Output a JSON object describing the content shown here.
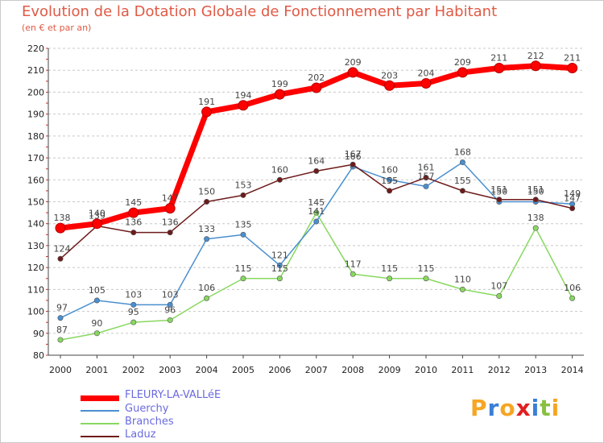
{
  "chart_data": {
    "type": "line",
    "title": "Evolution de la Dotation Globale de Fonctionnement par Habitant",
    "subtitle": "(en € et par an)",
    "x": [
      "2000",
      "2001",
      "2002",
      "2003",
      "2004",
      "2005",
      "2006",
      "2007",
      "2008",
      "2009",
      "2010",
      "2011",
      "2012",
      "2013",
      "2014"
    ],
    "ylim": [
      80,
      220
    ],
    "yticks": [
      80,
      90,
      100,
      110,
      120,
      130,
      140,
      150,
      160,
      170,
      180,
      190,
      200,
      210,
      220
    ],
    "grid": "horizontal dashed",
    "legend_position": "bottom-left",
    "series": [
      {
        "name": "FLEURY-LA-VALLéE",
        "color": "#ff0000",
        "values": [
          138,
          140,
          145,
          147,
          191,
          194,
          199,
          202,
          209,
          203,
          204,
          209,
          211,
          212,
          211
        ],
        "labels": [
          "138",
          "140",
          "145",
          "147",
          "191",
          "194",
          "199",
          "202",
          "209",
          "203",
          "204",
          "209",
          "211",
          "212",
          "211"
        ]
      },
      {
        "name": "Guerchy",
        "color": "#4a8fd0",
        "values": [
          97,
          105,
          103,
          103,
          133,
          135,
          121,
          141,
          166,
          160,
          157,
          168,
          150,
          150,
          149
        ],
        "labels": [
          "97",
          "105",
          "103",
          "103",
          "133",
          "135",
          "121",
          "141",
          "166",
          "160",
          "157",
          "168",
          "150",
          "150",
          "149"
        ]
      },
      {
        "name": "Branches",
        "color": "#88d860",
        "values": [
          87,
          90,
          95,
          96,
          106,
          115,
          115,
          145,
          117,
          115,
          115,
          110,
          107,
          138,
          106
        ],
        "labels": [
          "87",
          "90",
          "95",
          "96",
          "106",
          "115",
          "115",
          "145",
          "117",
          "115",
          "115",
          "110",
          "107",
          "138",
          "106"
        ]
      },
      {
        "name": "Laduz",
        "color": "#6e1a1a",
        "values": [
          124,
          139,
          136,
          136,
          150,
          153,
          160,
          164,
          167,
          155,
          161,
          155,
          151,
          151,
          147
        ],
        "labels": [
          "124",
          "139",
          "136",
          "136",
          "150",
          "153",
          "160",
          "164",
          "167",
          "155",
          "161",
          "155",
          "151",
          "151",
          "147"
        ]
      }
    ]
  },
  "logo": {
    "letters": [
      "P",
      "r",
      "o",
      "x",
      "i",
      "t",
      "i"
    ],
    "colors": [
      "#f5a623",
      "#3a7fd6",
      "#f5a623",
      "#e02020",
      "#3a7fd6",
      "#88c040",
      "#f5a623"
    ]
  }
}
